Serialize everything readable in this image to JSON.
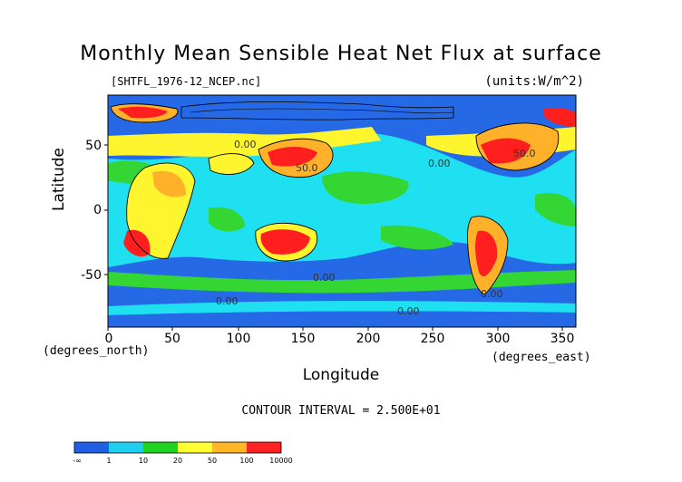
{
  "title": "Monthly Mean Sensible Heat Net Flux at surface",
  "file_label": "[SHTFL_1976-12_NCEP.nc]",
  "units_label": "(units:W/m^2)",
  "y_axis": {
    "label": "Latitude",
    "unit_note": "(degrees_north)",
    "ticks": [
      "50",
      "0",
      "-50"
    ]
  },
  "x_axis": {
    "label": "Longitude",
    "unit_note": "(degrees_east)",
    "ticks": [
      "0",
      "50",
      "100",
      "150",
      "200",
      "250",
      "300",
      "350"
    ]
  },
  "contour_interval": "CONTOUR INTERVAL = 2.500E+01",
  "contour_labels": [
    "50.0",
    "50.0",
    "0.00",
    "0.00",
    "0.00",
    "0.00",
    "0.00",
    "0.00"
  ],
  "colorbar": {
    "labels": [
      "-∞",
      "1",
      "10",
      "20",
      "50",
      "100",
      "10000"
    ],
    "colors": [
      "#1e5fe6",
      "#1ecff0",
      "#21d321",
      "#ffff33",
      "#ffb627",
      "#ff2222"
    ]
  },
  "map": {
    "fill_colors": {
      "ocean_low": "#2569e6",
      "ocean": "#1ee0f0",
      "mid": "#33d633",
      "warm": "#fff52e",
      "hot": "#ffb12a",
      "extreme": "#ff1f1f"
    }
  }
}
